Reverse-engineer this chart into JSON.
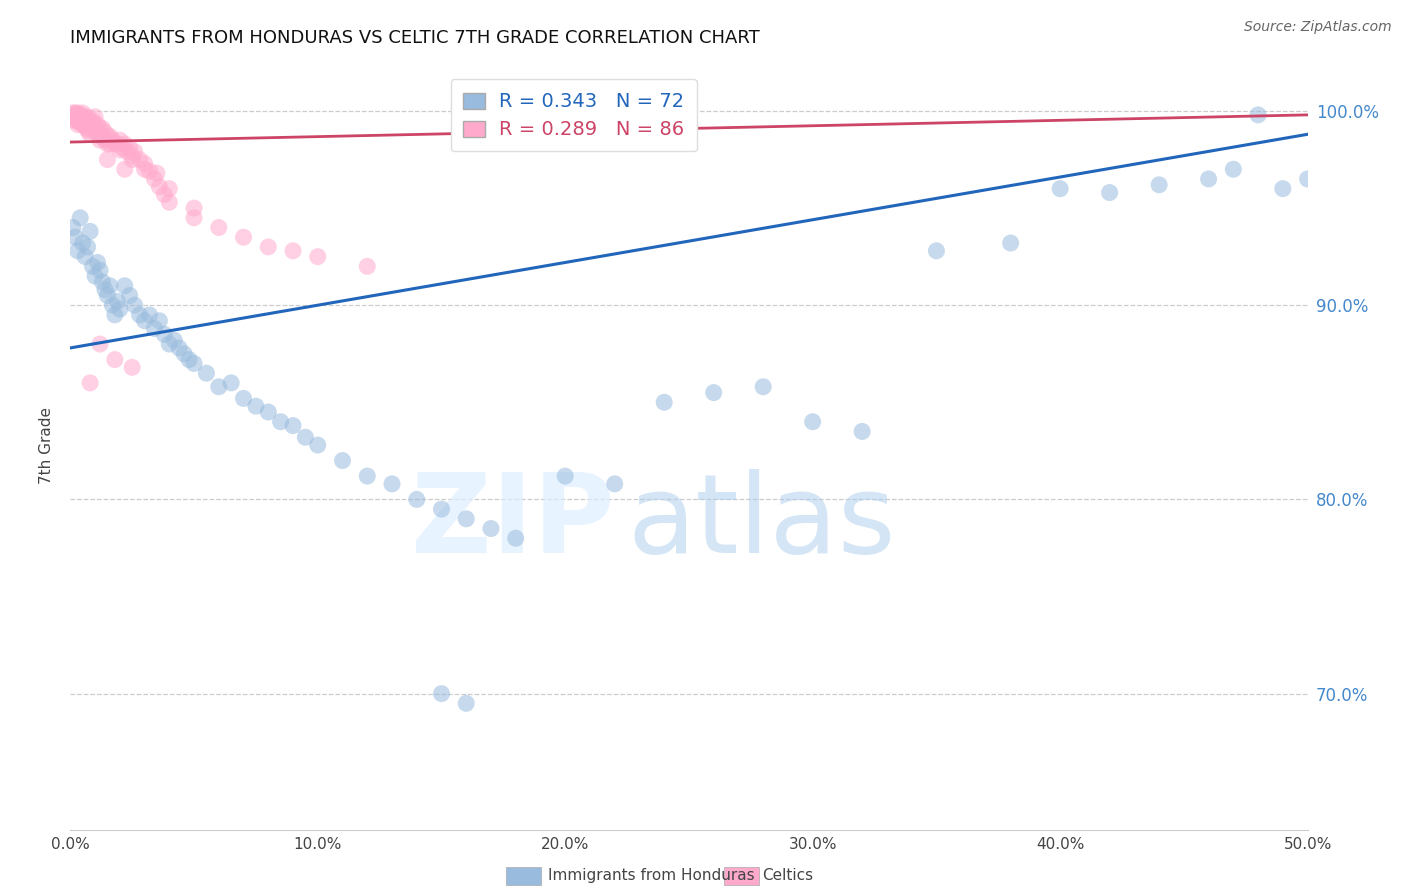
{
  "title": "IMMIGRANTS FROM HONDURAS VS CELTIC 7TH GRADE CORRELATION CHART",
  "source_text": "Source: ZipAtlas.com",
  "ylabel_left": "7th Grade",
  "xlabel_label1": "Immigrants from Honduras",
  "xlabel_label2": "Celtics",
  "x_min": 0.0,
  "x_max": 0.5,
  "y_min": 0.63,
  "y_max": 1.025,
  "y_ticks": [
    0.7,
    0.8,
    0.9,
    1.0
  ],
  "x_ticks": [
    0.0,
    0.1,
    0.2,
    0.3,
    0.4,
    0.5
  ],
  "blue_color": "#99BBDD",
  "pink_color": "#FFAACC",
  "blue_line_color": "#2266BB",
  "pink_line_color": "#CC4466",
  "legend_R_blue": "R = 0.343",
  "legend_N_blue": "N = 72",
  "legend_R_pink": "R = 0.289",
  "legend_N_pink": "N = 86",
  "watermark_zip": "ZIP",
  "watermark_atlas": "atlas",
  "background_color": "#ffffff",
  "grid_color": "#cccccc",
  "right_axis_color": "#4488CC",
  "blue_x": [
    0.001,
    0.002,
    0.003,
    0.004,
    0.005,
    0.006,
    0.007,
    0.008,
    0.009,
    0.01,
    0.011,
    0.012,
    0.013,
    0.014,
    0.015,
    0.016,
    0.017,
    0.018,
    0.019,
    0.02,
    0.022,
    0.024,
    0.026,
    0.028,
    0.03,
    0.032,
    0.034,
    0.036,
    0.038,
    0.04,
    0.042,
    0.044,
    0.046,
    0.048,
    0.05,
    0.055,
    0.06,
    0.065,
    0.07,
    0.075,
    0.08,
    0.085,
    0.09,
    0.095,
    0.1,
    0.11,
    0.12,
    0.13,
    0.14,
    0.15,
    0.16,
    0.17,
    0.18,
    0.2,
    0.22,
    0.24,
    0.26,
    0.28,
    0.3,
    0.32,
    0.35,
    0.38,
    0.4,
    0.42,
    0.44,
    0.46,
    0.47,
    0.48,
    0.49,
    0.5,
    0.15,
    0.16
  ],
  "blue_y": [
    0.94,
    0.935,
    0.928,
    0.945,
    0.932,
    0.925,
    0.93,
    0.938,
    0.92,
    0.915,
    0.922,
    0.918,
    0.912,
    0.908,
    0.905,
    0.91,
    0.9,
    0.895,
    0.902,
    0.898,
    0.91,
    0.905,
    0.9,
    0.895,
    0.892,
    0.895,
    0.888,
    0.892,
    0.885,
    0.88,
    0.882,
    0.878,
    0.875,
    0.872,
    0.87,
    0.865,
    0.858,
    0.86,
    0.852,
    0.848,
    0.845,
    0.84,
    0.838,
    0.832,
    0.828,
    0.82,
    0.812,
    0.808,
    0.8,
    0.795,
    0.79,
    0.785,
    0.78,
    0.812,
    0.808,
    0.85,
    0.855,
    0.858,
    0.84,
    0.835,
    0.928,
    0.932,
    0.96,
    0.958,
    0.962,
    0.965,
    0.97,
    0.998,
    0.96,
    0.965,
    0.7,
    0.695
  ],
  "pink_x": [
    0.001,
    0.001,
    0.002,
    0.002,
    0.002,
    0.003,
    0.003,
    0.003,
    0.003,
    0.004,
    0.004,
    0.004,
    0.005,
    0.005,
    0.005,
    0.005,
    0.006,
    0.006,
    0.006,
    0.007,
    0.007,
    0.007,
    0.008,
    0.008,
    0.009,
    0.009,
    0.01,
    0.01,
    0.01,
    0.011,
    0.011,
    0.012,
    0.012,
    0.013,
    0.013,
    0.014,
    0.014,
    0.015,
    0.015,
    0.016,
    0.017,
    0.018,
    0.019,
    0.02,
    0.021,
    0.022,
    0.023,
    0.024,
    0.025,
    0.026,
    0.028,
    0.03,
    0.032,
    0.034,
    0.036,
    0.038,
    0.04,
    0.05,
    0.06,
    0.07,
    0.08,
    0.09,
    0.1,
    0.12,
    0.022,
    0.015,
    0.012,
    0.008,
    0.018,
    0.025,
    0.003,
    0.004,
    0.005,
    0.006,
    0.007,
    0.008,
    0.03,
    0.04,
    0.05,
    0.012,
    0.016,
    0.02,
    0.025,
    0.035,
    0.003,
    0.004
  ],
  "pink_y": [
    0.999,
    0.997,
    0.999,
    0.995,
    0.998,
    0.999,
    0.997,
    0.995,
    0.993,
    0.998,
    0.996,
    0.994,
    0.999,
    0.997,
    0.995,
    0.993,
    0.997,
    0.995,
    0.993,
    0.997,
    0.995,
    0.991,
    0.995,
    0.993,
    0.995,
    0.991,
    0.997,
    0.993,
    0.989,
    0.993,
    0.989,
    0.991,
    0.987,
    0.991,
    0.987,
    0.989,
    0.985,
    0.987,
    0.983,
    0.987,
    0.985,
    0.983,
    0.983,
    0.985,
    0.981,
    0.983,
    0.979,
    0.981,
    0.977,
    0.979,
    0.975,
    0.973,
    0.969,
    0.965,
    0.961,
    0.957,
    0.953,
    0.945,
    0.94,
    0.935,
    0.93,
    0.928,
    0.925,
    0.92,
    0.97,
    0.975,
    0.88,
    0.86,
    0.872,
    0.868,
    0.998,
    0.996,
    0.994,
    0.992,
    0.99,
    0.988,
    0.97,
    0.96,
    0.95,
    0.985,
    0.983,
    0.98,
    0.975,
    0.968,
    0.996,
    0.994
  ],
  "blue_trendline": [
    0.878,
    0.988
  ],
  "pink_trendline": [
    0.984,
    0.998
  ]
}
